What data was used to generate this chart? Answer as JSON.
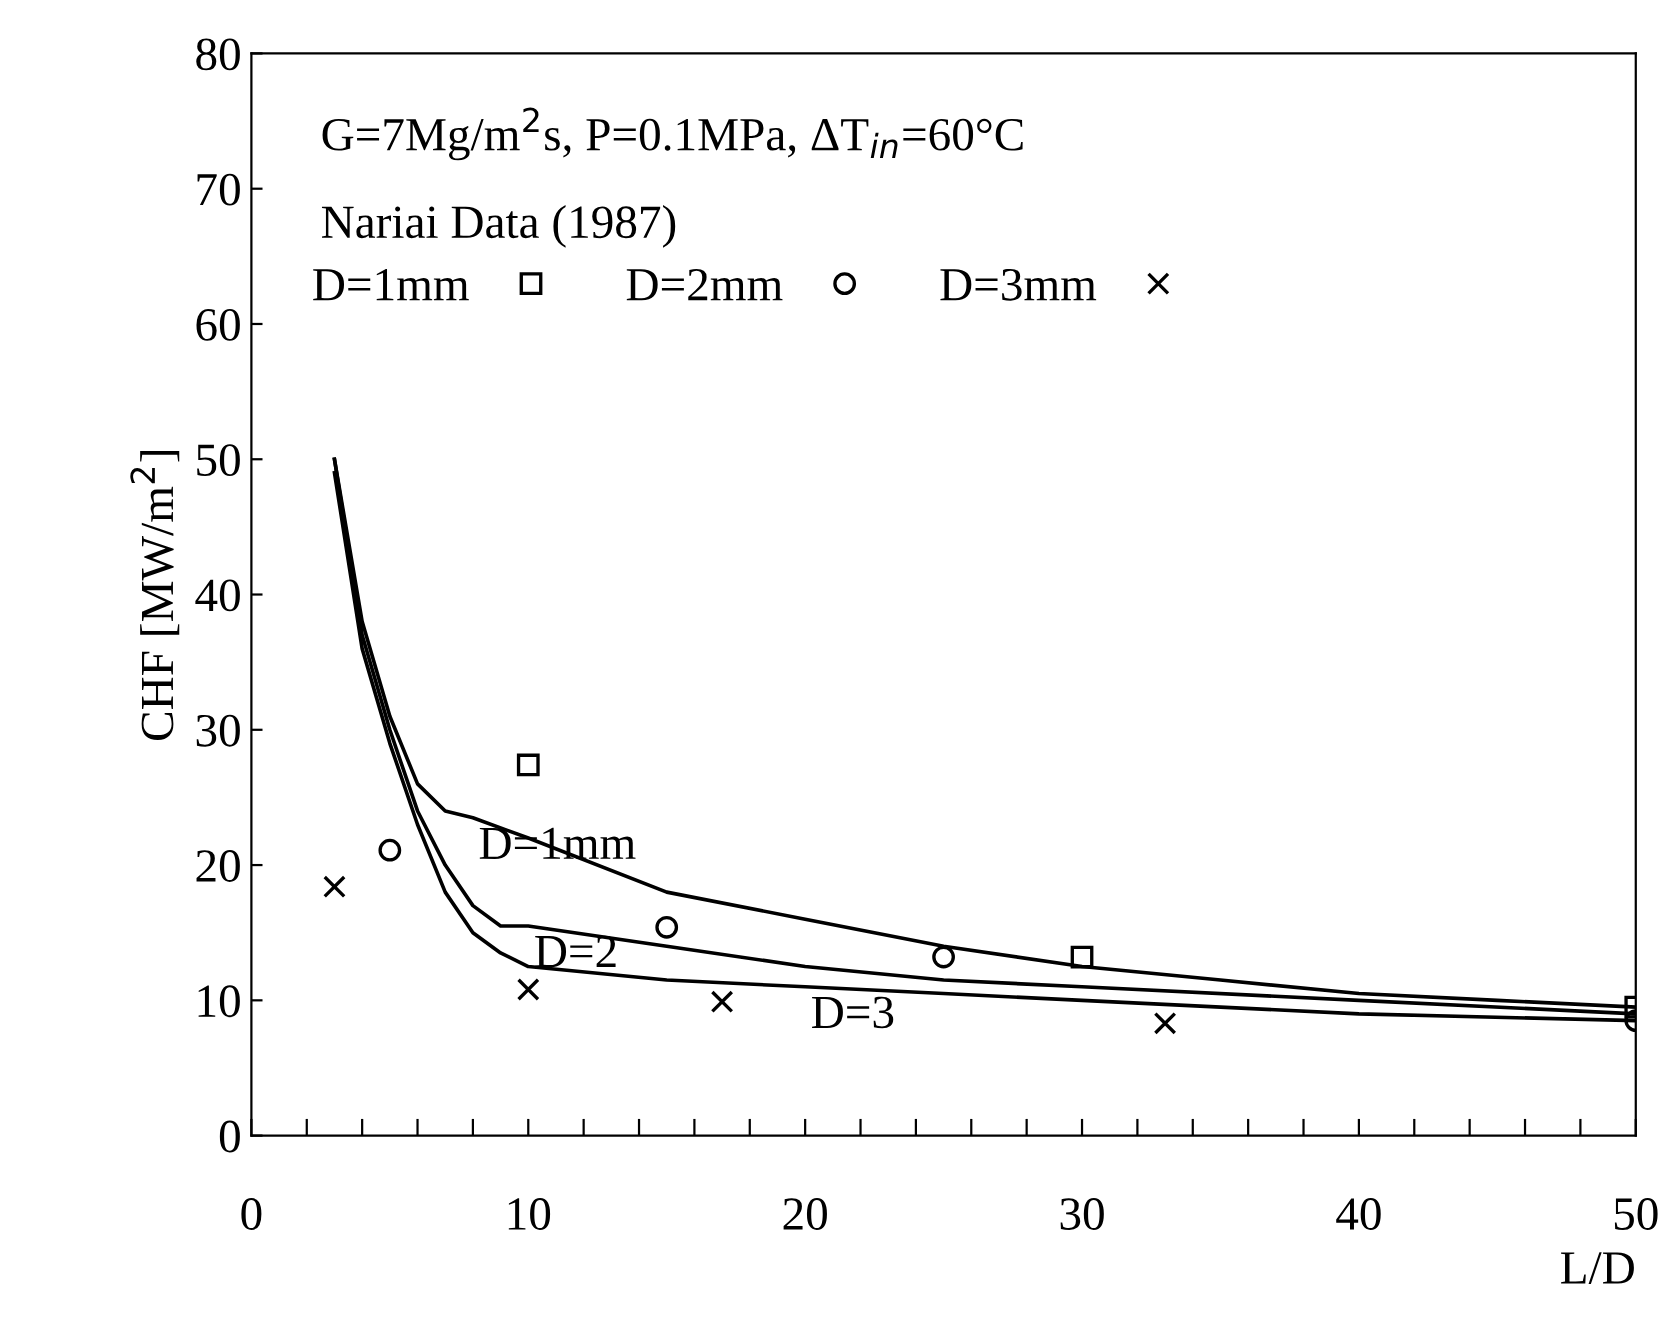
{
  "chart_data": {
    "type": "scatter",
    "title": "G=7Mg/m$^{2}$s, P=0.1MPa, ΔT$_{in}$=60°C",
    "subtitle": "Nariai Data (1987)",
    "xlabel": "L/D",
    "ylabel": "CHF [MW/m$^{2}$]",
    "xlim": [
      0,
      50
    ],
    "ylim": [
      0,
      80
    ],
    "xticks": [
      0,
      {
        "value": 2,
        "label": null
      },
      {
        "value": 4,
        "label": null
      },
      {
        "value": 6,
        "label": null
      },
      {
        "value": 8,
        "label": null
      },
      10,
      {
        "value": 12,
        "label": null
      },
      {
        "value": 14,
        "label": null
      },
      {
        "value": 16,
        "label": null
      },
      {
        "value": 18,
        "label": null
      },
      20,
      {
        "value": 22,
        "label": null
      },
      {
        "value": 24,
        "label": null
      },
      {
        "value": 26,
        "label": null
      },
      {
        "value": 28,
        "label": null
      },
      30,
      {
        "value": 32,
        "label": null
      },
      {
        "value": 34,
        "label": null
      },
      {
        "value": 36,
        "label": null
      },
      {
        "value": 38,
        "label": null
      },
      40,
      {
        "value": 42,
        "label": null
      },
      {
        "value": 44,
        "label": null
      },
      {
        "value": 46,
        "label": null
      },
      {
        "value": 48,
        "label": null
      },
      50
    ],
    "yticks": [
      0,
      10,
      20,
      30,
      40,
      50,
      60,
      70,
      80
    ],
    "grid": false,
    "legend": "top left",
    "series": [
      {
        "name": "D=1mm",
        "marker": "square",
        "color": "#000000",
        "x": [
          10,
          30,
          50
        ],
        "values": [
          27.4,
          13.2,
          9.5
        ]
      },
      {
        "name": "D=2mm",
        "marker": "circle",
        "color": "#000000",
        "x": [
          5,
          15,
          25,
          50
        ],
        "values": [
          21.1,
          15.4,
          13.2,
          8.5
        ]
      },
      {
        "name": "D=3mm",
        "marker": "cross",
        "color": "#000000",
        "x": [
          3,
          10,
          17,
          33
        ],
        "values": [
          18.4,
          10.8,
          9.9,
          8.3
        ]
      },
      {
        "type": "line",
        "color": "#000000",
        "line_style": "solid",
        "x": [
          3,
          4,
          5,
          6,
          7,
          8,
          10,
          15,
          20,
          25,
          30,
          35,
          40,
          45,
          50
        ],
        "values": [
          50,
          38,
          31,
          26,
          24,
          23.5,
          22,
          18,
          16,
          14,
          12.5,
          11.5,
          10.5,
          10,
          9.5
        ]
      },
      {
        "type": "line",
        "color": "#000000",
        "line_style": "solid",
        "x": [
          3,
          4,
          5,
          6,
          7,
          8,
          9,
          10,
          15,
          20,
          25,
          30,
          40,
          50
        ],
        "values": [
          50,
          37,
          30,
          24,
          20,
          17,
          15.5,
          15.5,
          14,
          12.5,
          11.5,
          11,
          10,
          9
        ]
      },
      {
        "type": "line",
        "color": "#000000",
        "line_style": "solid",
        "x": [
          3,
          4,
          5,
          6,
          7,
          8,
          9,
          10,
          15,
          20,
          25,
          30,
          40,
          50
        ],
        "values": [
          49,
          36,
          29,
          23,
          18,
          15,
          13.5,
          12.5,
          11.5,
          11,
          10.5,
          10,
          9,
          8.5
        ]
      }
    ],
    "annotations": [
      {
        "text": "D=1mm",
        "x": 8,
        "y": 23.5
      },
      {
        "text": "D=2",
        "x": 10,
        "y": 15.5
      },
      {
        "text": "D=3",
        "x": 20,
        "y": 11
      }
    ]
  }
}
